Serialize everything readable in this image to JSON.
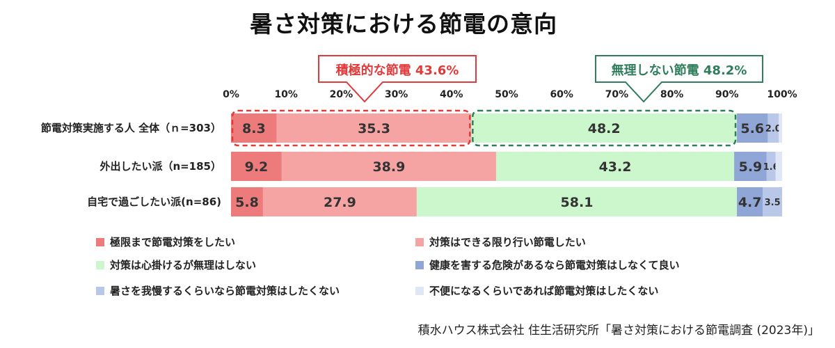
{
  "chart_data": {
    "type": "bar",
    "orientation": "horizontal",
    "stacked": true,
    "title": "暑さ対策における節電の意向",
    "xlim": [
      0,
      100
    ],
    "x_ticks": [
      "0%",
      "10%",
      "20%",
      "30%",
      "40%",
      "50%",
      "60%",
      "70%",
      "80%",
      "90%",
      "100%"
    ],
    "grid": false,
    "legend_position": "bottom",
    "categories": [
      "節電対策実施する人 全体（ｎ=303）",
      "外出したい派（n=185）",
      "自宅で過ごしたい派(n=86)"
    ],
    "series": [
      {
        "name": "極限まで節電対策をしたい",
        "color": "#ee7b7b",
        "values": [
          8.3,
          9.2,
          5.8
        ],
        "labels": [
          "8.3",
          "9.2",
          "5.8"
        ]
      },
      {
        "name": "対策はできる限り行い節電したい",
        "color": "#f5a3a3",
        "values": [
          35.3,
          38.9,
          27.9
        ],
        "labels": [
          "35.3",
          "38.9",
          "27.9"
        ]
      },
      {
        "name": "対策は心掛けるが無理はしない",
        "color": "#ccf7cc",
        "values": [
          48.2,
          43.2,
          58.1
        ],
        "labels": [
          "48.2",
          "43.2",
          "58.1"
        ]
      },
      {
        "name": "健康を害する危険があるなら節電対策はしなくて良い",
        "color": "#8fa6d6",
        "values": [
          5.6,
          5.9,
          4.7
        ],
        "labels": [
          "5.6",
          "5.9",
          "4.7"
        ]
      },
      {
        "name": "暑さを我慢するくらいなら節電対策はしたくない",
        "color": "#b9c7e8",
        "values": [
          2.0,
          1.6,
          3.5
        ],
        "labels": [
          "2.0",
          "1.6",
          "3.5"
        ]
      },
      {
        "name": "不便になるくらいであれば節電対策はしたくない",
        "color": "#dfe6f5",
        "values": [
          0.6,
          1.2,
          0
        ],
        "labels": [
          "",
          "",
          ""
        ]
      }
    ],
    "annotations": [
      {
        "text": "積極的な節電 43.6%",
        "color": "#e03a3a",
        "range": [
          0,
          43.6
        ],
        "row": 0
      },
      {
        "text": "無理しない節電 48.2%",
        "color": "#2e7d5b",
        "range": [
          43.6,
          91.8
        ],
        "row": 0
      }
    ]
  },
  "source": "積水ハウス株式会社 住生活研究所「暑さ対策における節電調査 (2023年)」"
}
